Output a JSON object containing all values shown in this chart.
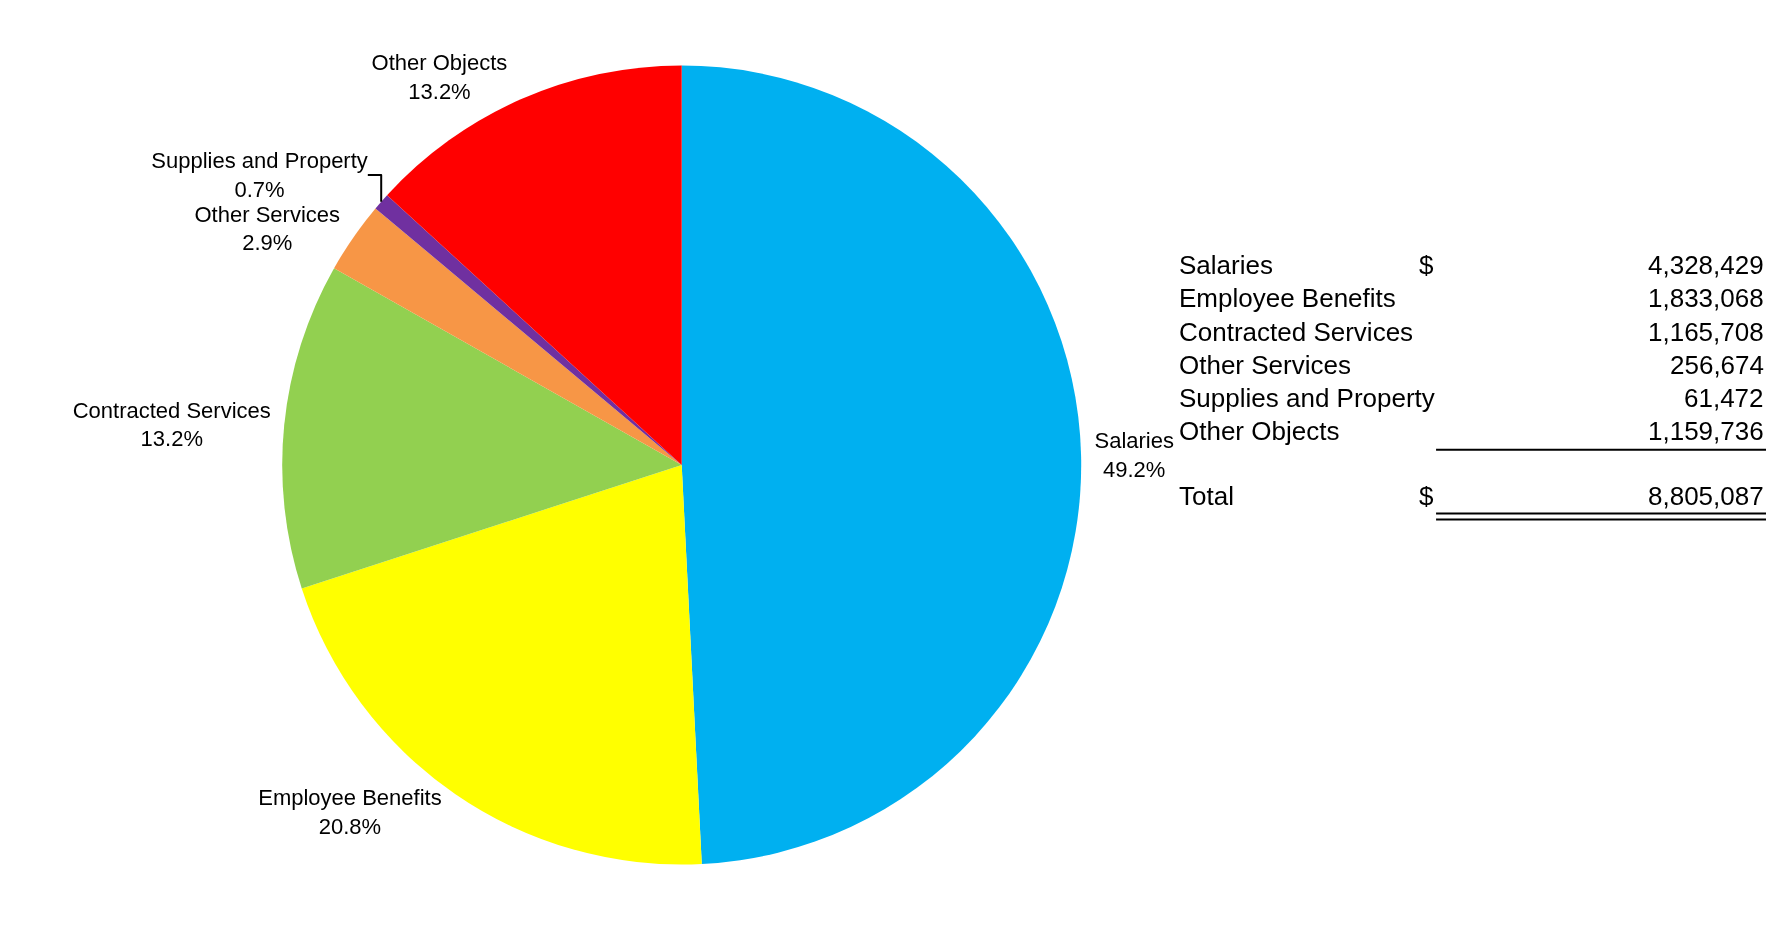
{
  "chart_data": {
    "type": "pie",
    "categories": [
      "Salaries",
      "Employee Benefits",
      "Contracted Services",
      "Other Services",
      "Supplies and Property",
      "Other Objects"
    ],
    "values": [
      49.2,
      20.8,
      13.2,
      2.9,
      0.7,
      13.2
    ],
    "value_labels": [
      "49.2%",
      "20.8%",
      "13.2%",
      "2.9%",
      "0.7%",
      "13.2%"
    ],
    "colors": [
      "#00b0f0",
      "#ffff00",
      "#92d050",
      "#f79646",
      "#7030a0",
      "#ff0000"
    ],
    "annotations": [
      "Salaries",
      "Employee Benefits",
      "Contracted Services",
      "Other Services",
      "Supplies and Property",
      "Other Objects",
      "Total",
      "$",
      "$",
      "4,328,429",
      "1,833,068",
      "1,165,708",
      "256,674",
      "61,472",
      "1,159,736",
      "8,805,087"
    ]
  }
}
